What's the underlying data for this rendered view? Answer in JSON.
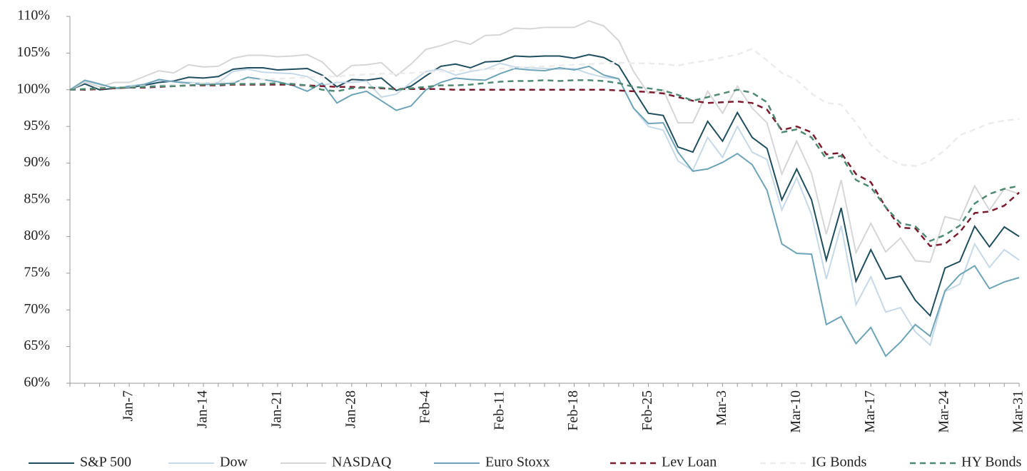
{
  "chart_data": {
    "type": "line",
    "categories": [
      null,
      null,
      null,
      null,
      "Jan-7",
      null,
      null,
      null,
      null,
      "Jan-14",
      null,
      null,
      null,
      null,
      "Jan-21",
      null,
      null,
      null,
      null,
      "Jan-28",
      null,
      null,
      null,
      null,
      "Feb-4",
      null,
      null,
      null,
      null,
      "Feb-11",
      null,
      null,
      null,
      null,
      "Feb-18",
      null,
      null,
      null,
      null,
      "Feb-25",
      null,
      null,
      null,
      null,
      "Mar-3",
      null,
      null,
      null,
      null,
      "Mar-10",
      null,
      null,
      null,
      null,
      "Mar-17",
      null,
      null,
      null,
      null,
      "Mar-24",
      null,
      null,
      null,
      null,
      "Mar-31"
    ],
    "ylim": [
      60,
      110
    ],
    "yticks": [
      {
        "value": 60,
        "label": "60%"
      },
      {
        "value": 65,
        "label": "65%"
      },
      {
        "value": 70,
        "label": "70%"
      },
      {
        "value": 75,
        "label": "75%"
      },
      {
        "value": 80,
        "label": "80%"
      },
      {
        "value": 85,
        "label": "85%"
      },
      {
        "value": 90,
        "label": "90%"
      },
      {
        "value": 95,
        "label": "95%"
      },
      {
        "value": 100,
        "label": "100%"
      },
      {
        "value": 105,
        "label": "105%"
      },
      {
        "value": 110,
        "label": "110%"
      }
    ],
    "grid": false,
    "legend": "bottom",
    "series": [
      {
        "name": "S&P 500",
        "color": "#1f4e5f",
        "dashed": false,
        "values": [
          100,
          100.8,
          100,
          100.2,
          100.3,
          100.6,
          101,
          101.2,
          101.7,
          101.6,
          101.8,
          102.8,
          103,
          103,
          102.7,
          102.8,
          102.9,
          102,
          100.4,
          101.4,
          101.3,
          101.6,
          99.9,
          100.5,
          101.9,
          103.2,
          103.5,
          103,
          103.8,
          103.9,
          104.6,
          104.5,
          104.6,
          104.6,
          104.3,
          104.8,
          104.4,
          103.3,
          100,
          96.8,
          96.5,
          92.2,
          91.5,
          95.7,
          93,
          96.9,
          93.5,
          92,
          85,
          89.2,
          85,
          76.8,
          83.9,
          73.9,
          78.2,
          74.2,
          74.6,
          71.3,
          69.2,
          75.7,
          76.6,
          81.4,
          78.6,
          81.3,
          80
        ]
      },
      {
        "name": "Dow",
        "color": "#c5d9e8",
        "dashed": false,
        "values": [
          100,
          101.2,
          100.7,
          100.3,
          100.4,
          100.8,
          101.3,
          101.1,
          101,
          100.9,
          101,
          102.5,
          102.8,
          102.4,
          102.3,
          102.2,
          101.8,
          100.6,
          101,
          101,
          101.2,
          99,
          99.4,
          101,
          102.5,
          102.8,
          102,
          102.5,
          102.8,
          103.6,
          103.1,
          103,
          102.9,
          102.8,
          102.9,
          102.2,
          101.7,
          101.5,
          97.5,
          95,
          94.5,
          90.3,
          89,
          93.5,
          90.8,
          95,
          91.5,
          90.5,
          83.6,
          88,
          83,
          74.2,
          81.5,
          70.7,
          74.5,
          69.7,
          70.3,
          67,
          65.2,
          72.5,
          73.5,
          79,
          75.8,
          78.2,
          76.8
        ]
      },
      {
        "name": "NASDAQ",
        "color": "#d6d6d6",
        "dashed": false,
        "values": [
          100,
          101,
          100.4,
          101,
          101,
          101.8,
          102.6,
          102.3,
          103.4,
          103.1,
          103.2,
          104.3,
          104.7,
          104.7,
          104.5,
          104.6,
          104.8,
          103.8,
          101.8,
          103.3,
          103.4,
          103.7,
          101.9,
          103.5,
          105.5,
          106,
          106.7,
          106.2,
          107.4,
          107.5,
          108.4,
          108.3,
          108.5,
          108.5,
          108.5,
          109.4,
          108.7,
          106.7,
          102.5,
          99.5,
          100,
          95.5,
          95.5,
          99.8,
          96.8,
          100.5,
          97.5,
          95.5,
          88.5,
          93,
          88.6,
          80.3,
          87.7,
          77.8,
          81.8,
          77.9,
          79.8,
          76.7,
          76.5,
          82.7,
          82.2,
          86.9,
          83.6,
          86.5,
          85.8
        ]
      },
      {
        "name": "Euro Stoxx",
        "color": "#6ea4b8",
        "dashed": false,
        "values": [
          100,
          101.3,
          100.8,
          100.2,
          100.5,
          100.7,
          101.4,
          101.1,
          100.9,
          100.7,
          100.8,
          100.9,
          101.7,
          101.4,
          101.1,
          100.6,
          99.8,
          100.9,
          98.2,
          99.3,
          99.8,
          98.5,
          97.2,
          97.8,
          100,
          101,
          101.6,
          101.4,
          101.3,
          102.2,
          102.9,
          102.7,
          102.6,
          103,
          102.7,
          103.2,
          102,
          101.5,
          97.5,
          95.4,
          95.5,
          91.5,
          88.9,
          89.2,
          90.1,
          91.3,
          89.8,
          86.3,
          79,
          77.7,
          77.6,
          68,
          69.1,
          65.4,
          67.6,
          63.7,
          65.6,
          68,
          66.4,
          72.6,
          74.8,
          76,
          72.9,
          73.8,
          74.4
        ]
      },
      {
        "name": "Lev Loan",
        "color": "#7b1c2e",
        "dashed": true,
        "values": [
          100,
          100,
          100.1,
          100.2,
          100.3,
          100.3,
          100.4,
          100.5,
          100.6,
          100.6,
          100.6,
          100.7,
          100.7,
          100.7,
          100.7,
          100.7,
          100.6,
          100.5,
          100.4,
          100.4,
          100.3,
          100.2,
          100.1,
          100.1,
          100.1,
          100.1,
          100,
          100,
          100,
          100,
          100,
          100,
          100,
          100,
          100,
          100,
          100,
          99.9,
          99.8,
          99.7,
          99.5,
          99,
          98.5,
          98.2,
          98.3,
          98.4,
          98.2,
          97.3,
          94.5,
          95,
          94.2,
          91.2,
          91.4,
          88.5,
          87.4,
          84,
          81.2,
          81.1,
          78.7,
          79,
          80.6,
          83.2,
          83.4,
          84.2,
          86
        ]
      },
      {
        "name": "IG Bonds",
        "color": "#ececec",
        "dashed": true,
        "values": [
          100,
          100.1,
          100.2,
          100.3,
          100.4,
          100.5,
          100.6,
          100.7,
          100.8,
          100.9,
          101,
          101.1,
          101.3,
          101.4,
          101.5,
          101.6,
          101.7,
          101.8,
          101.8,
          102,
          102.1,
          102.2,
          102.2,
          102.3,
          102.4,
          102.5,
          102.6,
          102.7,
          102.8,
          102.9,
          103,
          103.1,
          103.2,
          103.3,
          103.4,
          103.5,
          103.6,
          103.7,
          103.6,
          103.6,
          103.5,
          103.3,
          103.7,
          104,
          104.4,
          104.8,
          105.6,
          104,
          102.3,
          101.3,
          99.5,
          98.2,
          98,
          95.5,
          92.5,
          90.8,
          89.8,
          89.6,
          90.3,
          91.8,
          93.8,
          94.6,
          95.4,
          95.8,
          96
        ]
      },
      {
        "name": "HY Bonds",
        "color": "#4e8a72",
        "dashed": true,
        "values": [
          100,
          100.1,
          100.2,
          100.3,
          100.3,
          100.4,
          100.5,
          100.5,
          100.6,
          100.7,
          100.7,
          100.8,
          100.8,
          100.8,
          100.9,
          100.8,
          100.6,
          100,
          99.8,
          100.2,
          100.3,
          100.3,
          100,
          100.2,
          100.4,
          100.6,
          100.6,
          100.7,
          100.9,
          101.1,
          101.2,
          101.2,
          101.3,
          101.2,
          101.3,
          101.3,
          101.2,
          100.9,
          100.4,
          100.2,
          99.9,
          99.3,
          98.5,
          99,
          99.5,
          100,
          99.6,
          98.3,
          94.2,
          94.6,
          93.5,
          90.6,
          91,
          87.7,
          86.7,
          84,
          81.8,
          81.4,
          79.4,
          80.2,
          81.5,
          84.5,
          85.8,
          86.5,
          86.9
        ]
      }
    ]
  }
}
